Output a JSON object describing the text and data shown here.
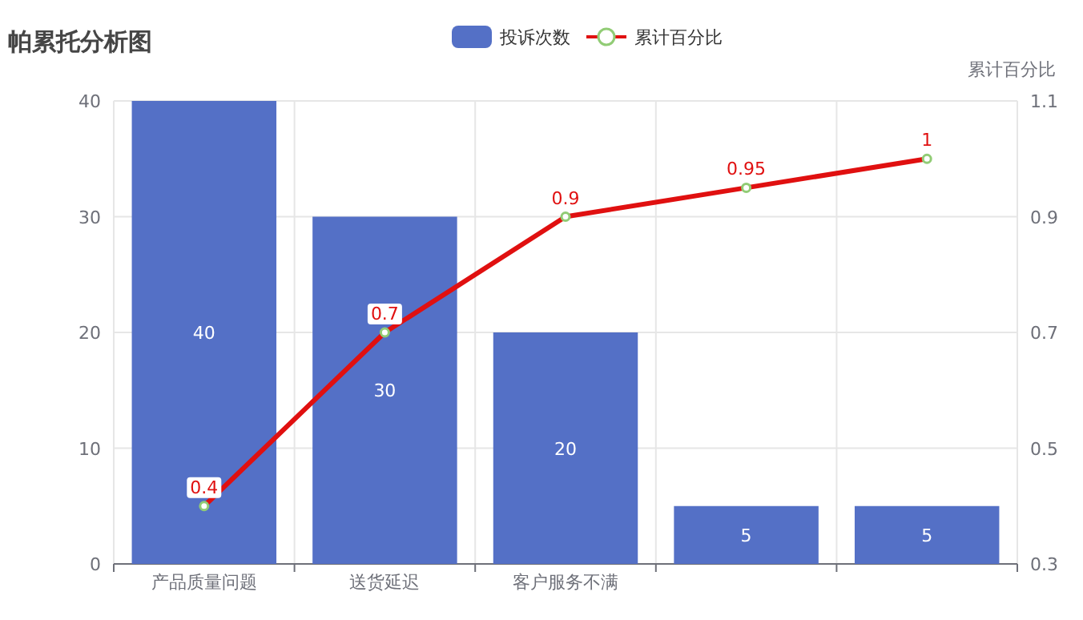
{
  "chart_data": {
    "type": "bar",
    "title": "帕累托分析图",
    "categories": [
      "产品质量问题",
      "送货延迟",
      "客户服务不满",
      null,
      null
    ],
    "series": [
      {
        "name": "投诉次数",
        "color": "#5470c6",
        "values": [
          40,
          30,
          20,
          5,
          5
        ]
      },
      {
        "name": "累计百分比",
        "type": "line",
        "axis": "y2",
        "color": "#e01010",
        "values": [
          0.4,
          0.7,
          0.9,
          0.95,
          1
        ]
      }
    ],
    "ylim": [
      0,
      40
    ],
    "yticks": [
      0,
      10,
      20,
      30,
      40
    ],
    "y2lim": [
      0.3,
      1.1
    ],
    "y2ticks": [
      0.3,
      0.5,
      0.7,
      0.9,
      1.1
    ],
    "y2label": "累计百分比",
    "grid": true,
    "legend": "top",
    "marker": "circle",
    "data_labels": true
  }
}
